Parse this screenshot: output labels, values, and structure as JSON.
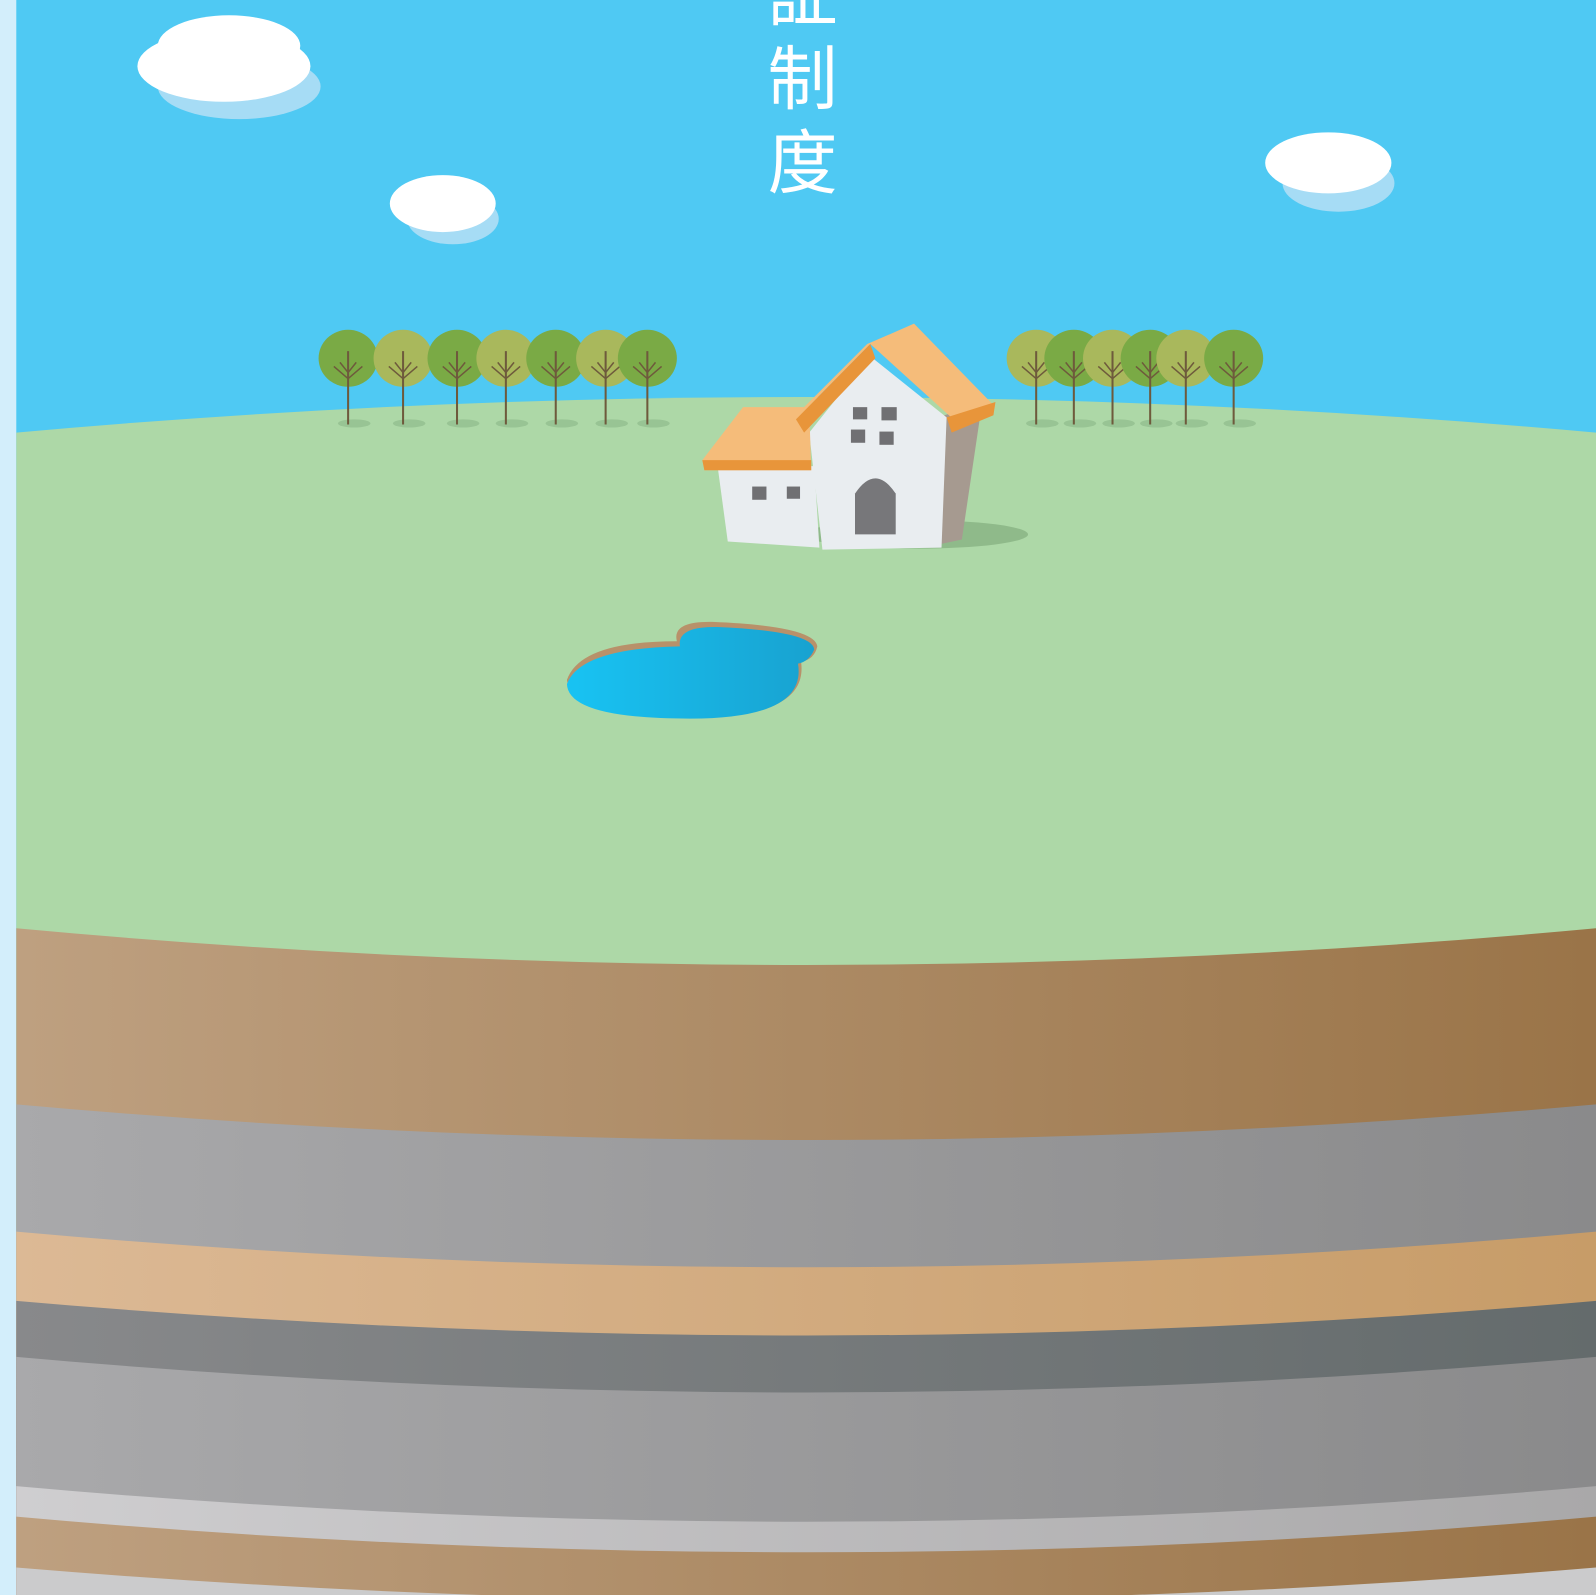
{
  "title": "証制度"
}
